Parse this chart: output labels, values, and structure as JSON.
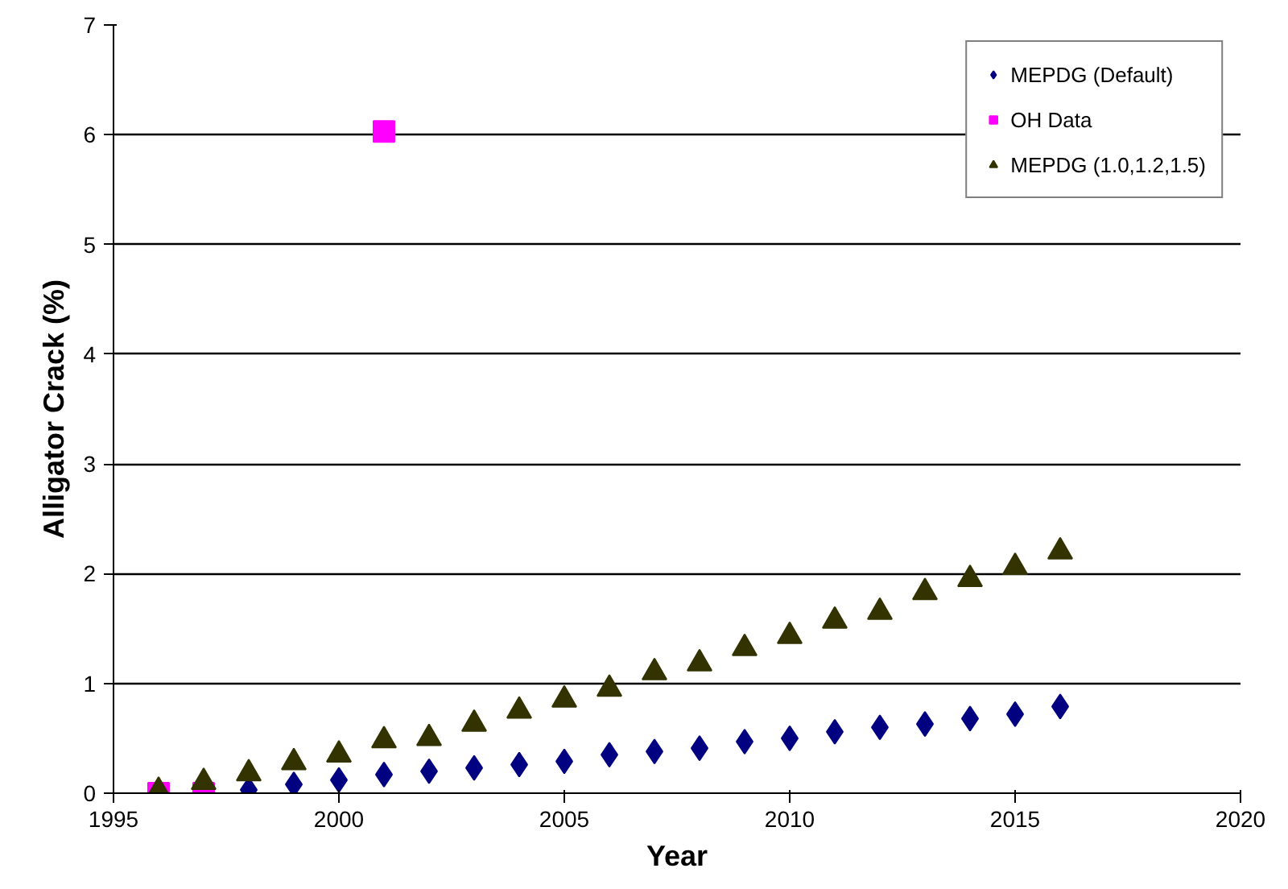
{
  "chart_data": {
    "type": "scatter",
    "xlabel": "Year",
    "ylabel": "Alligator Crack (%)",
    "xlim": [
      1995,
      2020
    ],
    "xticks": [
      1995,
      2000,
      2005,
      2010,
      2015,
      2020
    ],
    "ylim": [
      0,
      7
    ],
    "yticks": [
      0,
      1,
      2,
      3,
      4,
      5,
      6,
      7
    ],
    "grid": "y",
    "legend": "top right",
    "series": [
      {
        "name": "MEPDG (Default)",
        "color": "#000080",
        "marker": "diamond",
        "x": [
          1998,
          1999,
          2000,
          2001,
          2002,
          2003,
          2004,
          2005,
          2006,
          2007,
          2008,
          2009,
          2010,
          2011,
          2012,
          2013,
          2014,
          2015,
          2016
        ],
        "values": [
          0.03,
          0.08,
          0.12,
          0.17,
          0.2,
          0.23,
          0.26,
          0.29,
          0.35,
          0.38,
          0.41,
          0.47,
          0.5,
          0.56,
          0.6,
          0.63,
          0.68,
          0.72,
          0.79
        ]
      },
      {
        "name": "OH Data",
        "color": "#ff00ff",
        "marker": "square",
        "x": [
          1996,
          1997,
          2001
        ],
        "values": [
          0,
          0,
          6.03
        ]
      },
      {
        "name": "MEPDG (1.0,1.2,1.5)",
        "color": "#333300",
        "marker": "triangle",
        "x": [
          1996,
          1997,
          1998,
          1999,
          2000,
          2001,
          2002,
          2003,
          2004,
          2005,
          2006,
          2007,
          2008,
          2009,
          2010,
          2011,
          2012,
          2013,
          2014,
          2015,
          2016
        ],
        "values": [
          0.02,
          0.1,
          0.18,
          0.28,
          0.35,
          0.48,
          0.5,
          0.63,
          0.75,
          0.85,
          0.95,
          1.1,
          1.18,
          1.32,
          1.43,
          1.57,
          1.65,
          1.83,
          1.95,
          2.06,
          2.2
        ]
      }
    ]
  }
}
